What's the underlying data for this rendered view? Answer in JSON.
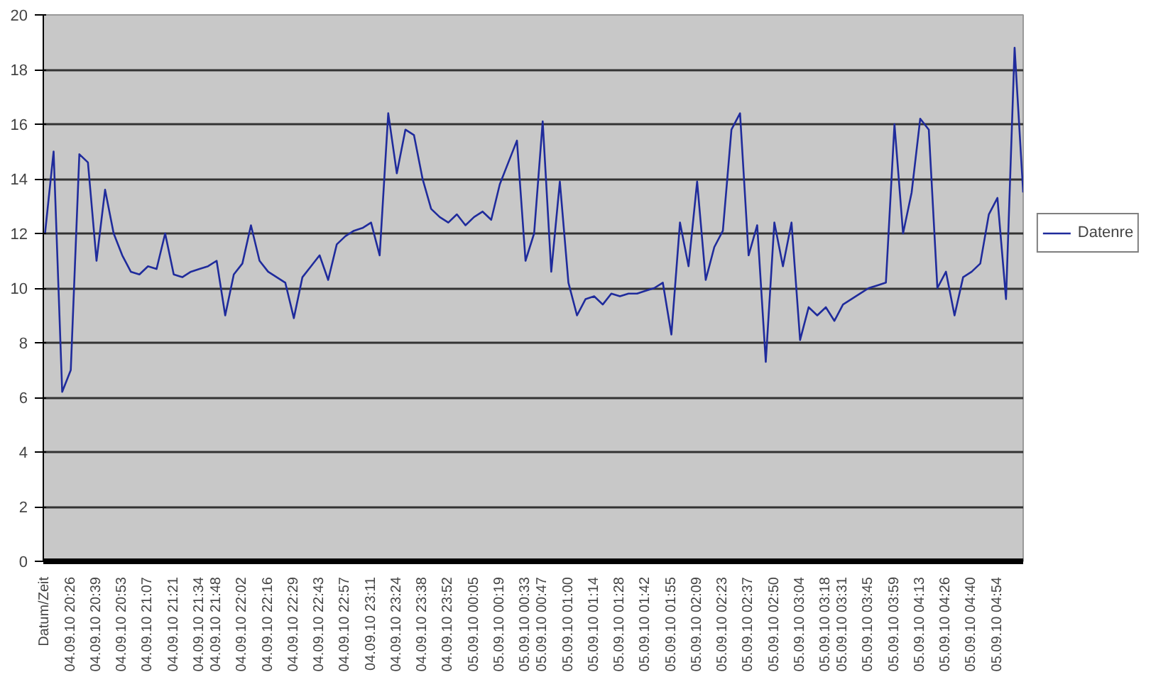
{
  "chart_data": {
    "type": "line",
    "categories": [
      "Datum/Zeit",
      null,
      null,
      "04.09.10 20:26",
      null,
      null,
      "04.09.10 20:39",
      null,
      null,
      "04.09.10 20:53",
      null,
      null,
      "04.09.10 21:07",
      null,
      null,
      "04.09.10 21:21",
      null,
      null,
      "04.09.10 21:34",
      null,
      "04.09.10 21:48",
      null,
      null,
      "04.09.10 22:02",
      null,
      null,
      "04.09.10 22:16",
      null,
      null,
      "04.09.10 22:29",
      null,
      null,
      "04.09.10 22:43",
      null,
      null,
      "04.09.10 22:57",
      null,
      null,
      "04.09.10 23:11",
      null,
      null,
      "04.09.10 23:24",
      null,
      null,
      "04.09.10 23:38",
      null,
      null,
      "04.09.10 23:52",
      null,
      null,
      "05.09.10 00:05",
      null,
      null,
      "05.09.10 00:19",
      null,
      null,
      "05.09.10 00:33",
      null,
      "05.09.10 00:47",
      null,
      null,
      "05.09.10 01:00",
      null,
      null,
      "05.09.10 01:14",
      null,
      null,
      "05.09.10 01:28",
      null,
      null,
      "05.09.10 01:42",
      null,
      null,
      "05.09.10 01:55",
      null,
      null,
      "05.09.10 02:09",
      null,
      null,
      "05.09.10 02:23",
      null,
      null,
      "05.09.10 02:37",
      null,
      null,
      "05.09.10 02:50",
      null,
      null,
      "05.09.10 03:04",
      null,
      null,
      "05.09.10 03:18",
      null,
      "05.09.10 03:31",
      null,
      null,
      "05.09.10 03:45",
      null,
      null,
      "05.09.10 03:59",
      null,
      null,
      "05.09.10 04:13",
      null,
      null,
      "05.09.10 04:26",
      null,
      null,
      "05.09.10 04:40",
      null,
      null,
      "05.09.10 04:54",
      null,
      null,
      null
    ],
    "series": [
      {
        "name": "Datenre",
        "color": "#1f2b9c",
        "values": [
          12,
          15,
          6.2,
          7,
          14.9,
          14.6,
          11,
          13.6,
          12,
          11.2,
          10.6,
          10.5,
          10.8,
          10.7,
          12,
          10.5,
          10.4,
          10.6,
          10.7,
          10.8,
          11,
          9,
          10.5,
          10.9,
          12.3,
          11,
          10.6,
          10.4,
          10.2,
          8.9,
          10.4,
          10.8,
          11.2,
          10.3,
          11.6,
          11.9,
          12.1,
          12.2,
          12.4,
          11.2,
          16.4,
          14.2,
          15.8,
          15.6,
          14,
          12.9,
          12.6,
          12.4,
          12.7,
          12.3,
          12.6,
          12.8,
          12.5,
          13.8,
          14.6,
          15.4,
          11,
          12,
          16.1,
          10.6,
          13.9,
          10.2,
          9,
          9.6,
          9.7,
          9.4,
          9.8,
          9.7,
          9.8,
          9.8,
          9.9,
          10,
          10.2,
          8.3,
          12.4,
          10.8,
          13.9,
          10.3,
          11.5,
          12.1,
          15.8,
          16.4,
          11.2,
          12.3,
          7.3,
          12.4,
          10.8,
          12.4,
          8.1,
          9.3,
          9,
          9.3,
          8.8,
          9.4,
          9.6,
          9.8,
          10,
          10.1,
          10.2,
          16,
          12,
          13.5,
          16.2,
          15.8,
          10,
          10.6,
          9,
          10.4,
          10.6,
          10.9,
          12.7,
          13.3,
          9.6,
          18.8,
          13.5
        ]
      }
    ],
    "ylim": [
      0,
      20
    ],
    "yticks": [
      0,
      2,
      4,
      6,
      8,
      10,
      12,
      14,
      16,
      18,
      20
    ],
    "grid": "y",
    "legend": "right"
  }
}
